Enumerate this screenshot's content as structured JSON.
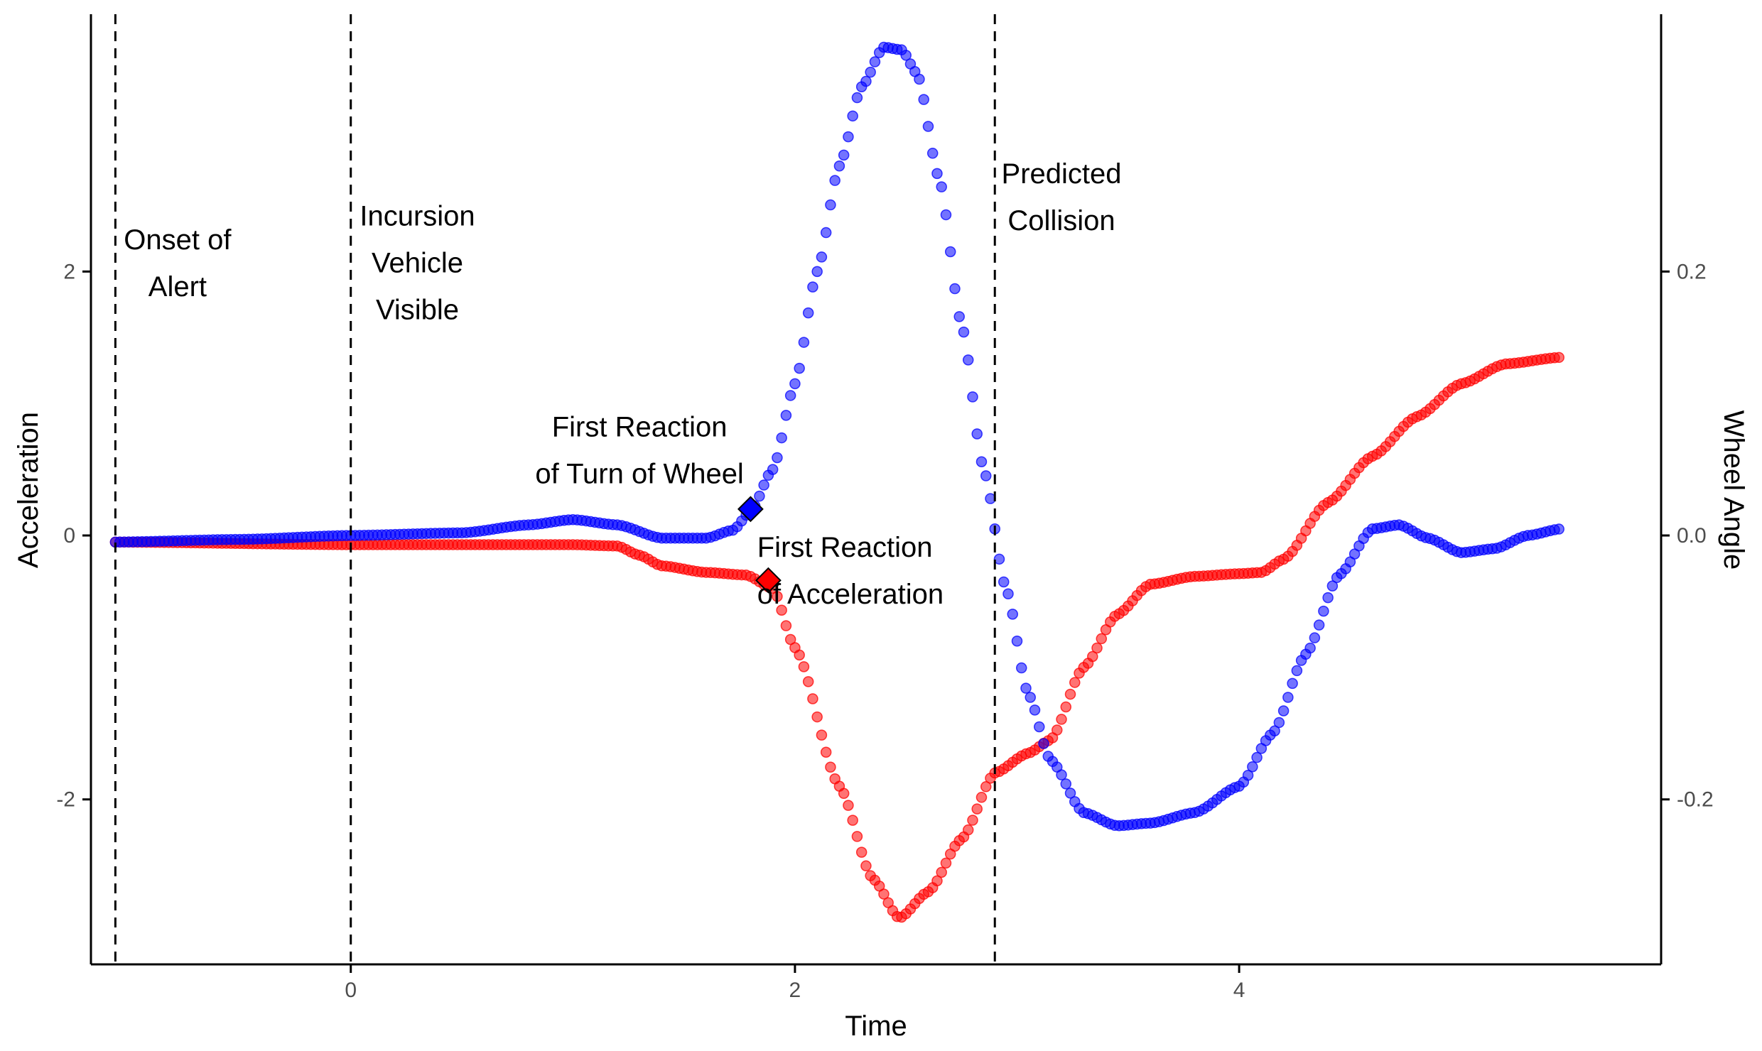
{
  "chart_data": {
    "type": "scatter",
    "title": "",
    "xlabel": "Time",
    "ylabel": "Acceleration",
    "y2label": "Wheel Angle",
    "xlim": [
      -1.17,
      5.9
    ],
    "ylim": [
      -3.25,
      3.95
    ],
    "y2lim": [
      -0.325,
      0.395
    ],
    "x_ticks": [
      0,
      2,
      4
    ],
    "y_ticks": [
      -2,
      0,
      2
    ],
    "y2_ticks": [
      -0.2,
      0.0,
      0.2
    ],
    "y_tick_labels": [
      "-2",
      "0",
      "2"
    ],
    "y2_tick_labels": [
      "-0.2",
      "0.0",
      "0.2"
    ],
    "grid": false,
    "legend": "none",
    "colors": {
      "acceleration": "#ff0000",
      "wheel_angle": "#0000ff"
    },
    "series": [
      {
        "axis": "left",
        "color": "#ff0000",
        "x_start": -1.06,
        "x_end": 5.45,
        "keypoints": [
          [
            -1.06,
            -0.05
          ],
          [
            0.0,
            -0.07
          ],
          [
            1.0,
            -0.07
          ],
          [
            1.2,
            -0.08
          ],
          [
            1.3,
            -0.15
          ],
          [
            1.4,
            -0.23
          ],
          [
            1.6,
            -0.28
          ],
          [
            1.78,
            -0.3
          ],
          [
            1.9,
            -0.4
          ],
          [
            2.0,
            -0.85
          ],
          [
            2.2,
            -1.9
          ],
          [
            2.35,
            -2.6
          ],
          [
            2.47,
            -2.9
          ],
          [
            2.6,
            -2.7
          ],
          [
            2.75,
            -2.3
          ],
          [
            2.9,
            -1.8
          ],
          [
            3.05,
            -1.65
          ],
          [
            3.15,
            -1.55
          ],
          [
            3.3,
            -1.0
          ],
          [
            3.45,
            -0.6
          ],
          [
            3.6,
            -0.37
          ],
          [
            3.8,
            -0.31
          ],
          [
            4.0,
            -0.29
          ],
          [
            4.1,
            -0.28
          ],
          [
            4.2,
            -0.18
          ],
          [
            4.4,
            0.25
          ],
          [
            4.6,
            0.6
          ],
          [
            4.8,
            0.9
          ],
          [
            5.0,
            1.15
          ],
          [
            5.2,
            1.3
          ],
          [
            5.45,
            1.35
          ]
        ]
      },
      {
        "axis": "right",
        "color": "#0000ff",
        "x_start": -1.06,
        "x_end": 5.45,
        "keypoints": [
          [
            -1.06,
            -0.005
          ],
          [
            -0.5,
            -0.003
          ],
          [
            0.0,
            0.0
          ],
          [
            0.5,
            0.002
          ],
          [
            0.8,
            0.008
          ],
          [
            1.0,
            0.012
          ],
          [
            1.2,
            0.008
          ],
          [
            1.4,
            -0.002
          ],
          [
            1.6,
            -0.002
          ],
          [
            1.72,
            0.004
          ],
          [
            1.8,
            0.018
          ],
          [
            1.9,
            0.05
          ],
          [
            2.0,
            0.115
          ],
          [
            2.1,
            0.2
          ],
          [
            2.2,
            0.28
          ],
          [
            2.3,
            0.34
          ],
          [
            2.4,
            0.37
          ],
          [
            2.48,
            0.368
          ],
          [
            2.55,
            0.35
          ],
          [
            2.65,
            0.27
          ],
          [
            2.75,
            0.16
          ],
          [
            2.85,
            0.05
          ],
          [
            2.95,
            -0.04
          ],
          [
            3.05,
            -0.12
          ],
          [
            3.15,
            -0.17
          ],
          [
            3.3,
            -0.21
          ],
          [
            3.45,
            -0.22
          ],
          [
            3.6,
            -0.218
          ],
          [
            3.8,
            -0.21
          ],
          [
            4.0,
            -0.19
          ],
          [
            4.15,
            -0.15
          ],
          [
            4.3,
            -0.09
          ],
          [
            4.45,
            -0.03
          ],
          [
            4.6,
            0.005
          ],
          [
            4.72,
            0.008
          ],
          [
            4.85,
            -0.002
          ],
          [
            5.0,
            -0.013
          ],
          [
            5.15,
            -0.01
          ],
          [
            5.3,
            0.0
          ],
          [
            5.45,
            0.005
          ]
        ]
      }
    ],
    "markers": [
      {
        "x": 1.8,
        "y": 0.02,
        "axis": "right",
        "shape": "diamond",
        "color": "#0000ff"
      },
      {
        "x": 1.88,
        "y": -0.34,
        "axis": "left",
        "shape": "diamond",
        "color": "#ff0000"
      }
    ],
    "vlines": [
      -1.06,
      0.0,
      2.9
    ],
    "annotations": [
      {
        "lines": [
          "Onset of",
          "Alert"
        ],
        "x": -0.78,
        "y": 2.17,
        "anchor": "middle"
      },
      {
        "lines": [
          "Incursion",
          "Vehicle",
          "Visible"
        ],
        "x": 0.3,
        "y": 2.35,
        "anchor": "middle"
      },
      {
        "lines": [
          "Predicted",
          "Collision"
        ],
        "x": 3.2,
        "y": 2.67,
        "anchor": "middle"
      },
      {
        "lines": [
          "First Reaction",
          "of Turn of Wheel"
        ],
        "x": 1.3,
        "y": 0.75,
        "anchor": "middle"
      },
      {
        "lines": [
          "First Reaction",
          "of Acceleration"
        ],
        "x": 1.83,
        "y": -0.16,
        "anchor": "start"
      }
    ]
  }
}
